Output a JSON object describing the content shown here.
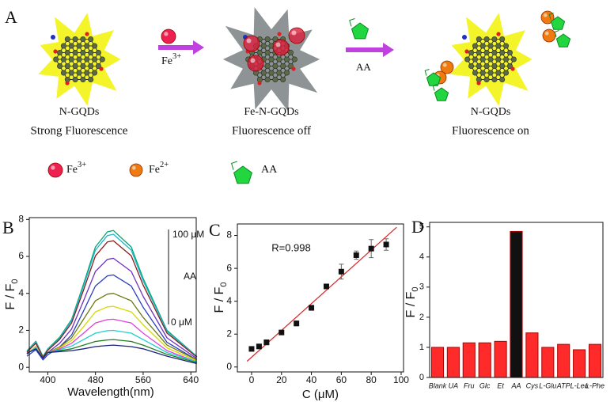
{
  "scheme": {
    "panel_label": "A",
    "steps": [
      {
        "name": "N-GQDs",
        "state": "Strong Fluorescence"
      },
      {
        "name": "Fe-N-GQDs",
        "state": "Fluorescence off"
      },
      {
        "name": "N-GQDs",
        "state": "Fluorescence on"
      }
    ],
    "arrows": [
      {
        "label": "Fe",
        "sup": "3+"
      },
      {
        "label": "AA"
      }
    ],
    "legend": [
      {
        "label": "Fe",
        "sup": "3+"
      },
      {
        "label": "Fe",
        "sup": "2+"
      },
      {
        "label": "AA"
      }
    ]
  },
  "chart_data": [
    {
      "type": "line",
      "panel_label": "B",
      "xlabel": "Wavelength(nm)",
      "ylabel": "F / F",
      "ylabel_sub": "0",
      "x": [
        365,
        380,
        392,
        400,
        420,
        440,
        460,
        480,
        500,
        510,
        540,
        560,
        600,
        650
      ],
      "series": [
        {
          "color": "#00a86b",
          "values": [
            0.89,
            1.41,
            0.59,
            1.0,
            1.63,
            2.59,
            4.51,
            6.51,
            7.33,
            7.4,
            6.51,
            4.81,
            2.0,
            0.59
          ]
        },
        {
          "color": "#1fb5d0",
          "values": [
            0.86,
            1.37,
            0.58,
            0.97,
            1.58,
            2.52,
            4.39,
            6.34,
            7.13,
            7.2,
            6.34,
            4.68,
            1.94,
            0.58
          ]
        },
        {
          "color": "#8b1a1a",
          "values": [
            0.82,
            1.3,
            0.55,
            0.92,
            1.51,
            2.4,
            4.18,
            6.03,
            6.78,
            6.85,
            6.03,
            4.45,
            1.85,
            0.55
          ]
        },
        {
          "color": "#7030c0",
          "values": [
            0.71,
            1.12,
            0.47,
            0.8,
            1.3,
            2.07,
            3.6,
            5.19,
            5.84,
            5.9,
            5.19,
            3.84,
            1.59,
            0.47
          ]
        },
        {
          "color": "#2a3fc0",
          "values": [
            0.6,
            0.95,
            0.4,
            0.68,
            1.1,
            1.75,
            3.05,
            4.4,
            4.95,
            5.0,
            4.4,
            3.25,
            1.35,
            0.4
          ]
        },
        {
          "color": "#6b7a10",
          "values": [
            0.75,
            1.1,
            0.5,
            0.8,
            1.1,
            1.6,
            2.6,
            3.6,
            3.96,
            4.0,
            3.6,
            2.7,
            1.2,
            0.4
          ]
        },
        {
          "color": "#d8d800",
          "values": [
            0.75,
            1.1,
            0.5,
            0.8,
            1.05,
            1.45,
            2.2,
            3.0,
            3.27,
            3.3,
            3.0,
            2.3,
            1.05,
            0.35
          ]
        },
        {
          "color": "#e040e0",
          "values": [
            0.75,
            1.05,
            0.5,
            0.8,
            1.0,
            1.3,
            1.85,
            2.4,
            2.58,
            2.6,
            2.4,
            1.85,
            0.9,
            0.3
          ]
        },
        {
          "color": "#20d0d0",
          "values": [
            0.75,
            1.05,
            0.5,
            0.8,
            0.95,
            1.15,
            1.5,
            1.85,
            1.98,
            2.0,
            1.85,
            1.5,
            0.8,
            0.3
          ]
        },
        {
          "color": "#208020",
          "values": [
            0.75,
            1.0,
            0.5,
            0.8,
            0.9,
            1.0,
            1.2,
            1.4,
            1.48,
            1.5,
            1.4,
            1.2,
            0.7,
            0.25
          ]
        },
        {
          "color": "#1a237e",
          "values": [
            0.75,
            1.0,
            0.5,
            0.8,
            0.85,
            0.9,
            1.0,
            1.12,
            1.18,
            1.2,
            1.12,
            1.0,
            0.6,
            0.2
          ]
        }
      ],
      "xlim": [
        369,
        649
      ],
      "xticks": [
        400,
        480,
        560,
        640
      ],
      "ylim": [
        -0.25,
        8.1
      ],
      "yticks": [
        0,
        2,
        4,
        6,
        8
      ],
      "annotations": [
        "100 μM",
        "AA",
        "0 μM"
      ]
    },
    {
      "type": "scatter",
      "panel_label": "C",
      "xlabel": "C (μM)",
      "ylabel": "F / F",
      "ylabel_sub": "0",
      "x": [
        0,
        5,
        10,
        20,
        30,
        40,
        50,
        60,
        70,
        80,
        90
      ],
      "values": [
        1.1,
        1.25,
        1.5,
        2.1,
        2.65,
        3.6,
        4.9,
        5.8,
        6.8,
        7.2,
        7.45
      ],
      "errors": [
        0.1,
        0.1,
        0.15,
        0.1,
        0.15,
        0.15,
        0.1,
        0.45,
        0.25,
        0.55,
        0.35
      ],
      "color": "#111111",
      "fit_line": {
        "color": "#e02020",
        "x": [
          -3,
          97
        ],
        "y": [
          0.35,
          8.5
        ]
      },
      "xlim": [
        -9.5,
        101.6
      ],
      "xticks": [
        0,
        20,
        40,
        60,
        80,
        100
      ],
      "ylim": [
        -0.3,
        8.7
      ],
      "yticks": [
        0,
        2,
        4,
        6,
        8
      ],
      "annotation": "R=0.998"
    },
    {
      "type": "bar",
      "panel_label": "D",
      "ylabel": "F / F",
      "ylabel_sub": "0",
      "categories": [
        "Blank",
        "UA",
        "Fru",
        "Glc",
        "Et",
        "AA",
        "Cys",
        "L-Glu",
        "ATP",
        "L-Leu",
        "L-Phe"
      ],
      "values": [
        1.0,
        1.0,
        1.15,
        1.15,
        1.2,
        4.85,
        1.48,
        1.0,
        1.1,
        0.92,
        1.1
      ],
      "colors": [
        "#ff2a2a",
        "#ff2a2a",
        "#ff2a2a",
        "#ff2a2a",
        "#ff2a2a",
        "#111111",
        "#ff2a2a",
        "#ff2a2a",
        "#ff2a2a",
        "#ff2a2a",
        "#ff2a2a"
      ],
      "edge_color": "#b00000",
      "ylim": [
        0,
        5.15
      ],
      "yticks": [
        0,
        1,
        2,
        3,
        4,
        5
      ]
    }
  ]
}
